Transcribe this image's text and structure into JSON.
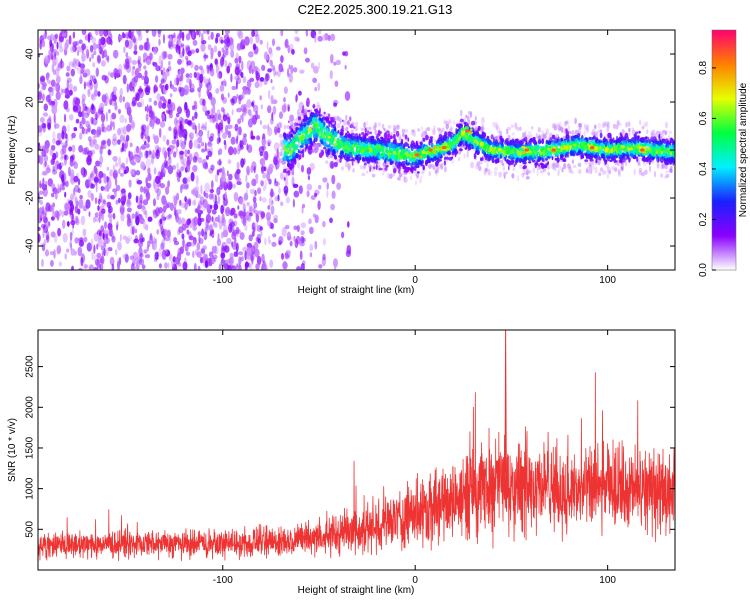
{
  "title": "C2E2.2025.300.19.21.G13",
  "chart_data": [
    {
      "type": "heatmap",
      "name": "spectrogram",
      "xlabel": "Height of straight line (km)",
      "ylabel": "Frequency (Hz)",
      "xlim": [
        -196,
        135
      ],
      "ylim": [
        -50,
        50
      ],
      "xticks": [
        -100,
        0,
        100
      ],
      "yticks": [
        -40,
        -20,
        0,
        20,
        40
      ],
      "ridge": [
        {
          "x": -65,
          "y": 0
        },
        {
          "x": -58,
          "y": 6
        },
        {
          "x": -52,
          "y": 10
        },
        {
          "x": -45,
          "y": 5
        },
        {
          "x": -35,
          "y": 1
        },
        {
          "x": -20,
          "y": 0
        },
        {
          "x": -5,
          "y": -2
        },
        {
          "x": 0,
          "y": -3
        },
        {
          "x": 5,
          "y": -1
        },
        {
          "x": 12,
          "y": 0
        },
        {
          "x": 20,
          "y": 3
        },
        {
          "x": 25,
          "y": 7
        },
        {
          "x": 30,
          "y": 4
        },
        {
          "x": 40,
          "y": 0
        },
        {
          "x": 55,
          "y": -1
        },
        {
          "x": 70,
          "y": 0
        },
        {
          "x": 85,
          "y": 2
        },
        {
          "x": 100,
          "y": 0
        },
        {
          "x": 115,
          "y": 1
        },
        {
          "x": 135,
          "y": -1
        }
      ],
      "hotspots": [
        {
          "x": 1,
          "y": -2
        },
        {
          "x": 8,
          "y": 0
        },
        {
          "x": 15,
          "y": 1
        },
        {
          "x": 27,
          "y": 8
        },
        {
          "x": 58,
          "y": 0
        },
        {
          "x": 72,
          "y": 0
        },
        {
          "x": 92,
          "y": 1
        },
        {
          "x": 118,
          "y": 0
        }
      ],
      "colorbar": {
        "label": "Normalized spectral amplitude",
        "range": [
          0,
          0.95
        ],
        "ticks": [
          "0.0",
          "0.2",
          "0.4",
          "0.6",
          "0.8"
        ],
        "tick_values": [
          0,
          0.2,
          0.4,
          0.6,
          0.8
        ],
        "colors": [
          "#ffffff",
          "#8a00ff",
          "#1a20ff",
          "#00f0ff",
          "#00ff40",
          "#e6ff00",
          "#ff8000",
          "#ff0070"
        ]
      }
    },
    {
      "type": "line",
      "name": "snr",
      "xlabel": "Height of straight line (km)",
      "ylabel": "SNR (10 * v/v)",
      "xlim": [
        -196,
        135
      ],
      "ylim": [
        0,
        2950
      ],
      "xticks": [
        -100,
        0,
        100
      ],
      "yticks": [
        500,
        1000,
        1500,
        2000,
        2500
      ],
      "color": "#ee3333",
      "envelope": [
        {
          "x": -196,
          "mean": 310,
          "amp": 180
        },
        {
          "x": -150,
          "mean": 320,
          "amp": 190
        },
        {
          "x": -100,
          "mean": 330,
          "amp": 200
        },
        {
          "x": -60,
          "mean": 370,
          "amp": 230
        },
        {
          "x": -40,
          "mean": 450,
          "amp": 300
        },
        {
          "x": -20,
          "mean": 550,
          "amp": 380
        },
        {
          "x": 0,
          "mean": 700,
          "amp": 500
        },
        {
          "x": 20,
          "mean": 850,
          "amp": 600
        },
        {
          "x": 40,
          "mean": 1050,
          "amp": 700
        },
        {
          "x": 60,
          "mean": 1100,
          "amp": 720
        },
        {
          "x": 80,
          "mean": 950,
          "amp": 600
        },
        {
          "x": 100,
          "mean": 1020,
          "amp": 620
        },
        {
          "x": 120,
          "mean": 980,
          "amp": 600
        },
        {
          "x": 135,
          "mean": 1000,
          "amp": 600
        }
      ],
      "peak": {
        "x": 47,
        "y": 2950
      }
    }
  ]
}
